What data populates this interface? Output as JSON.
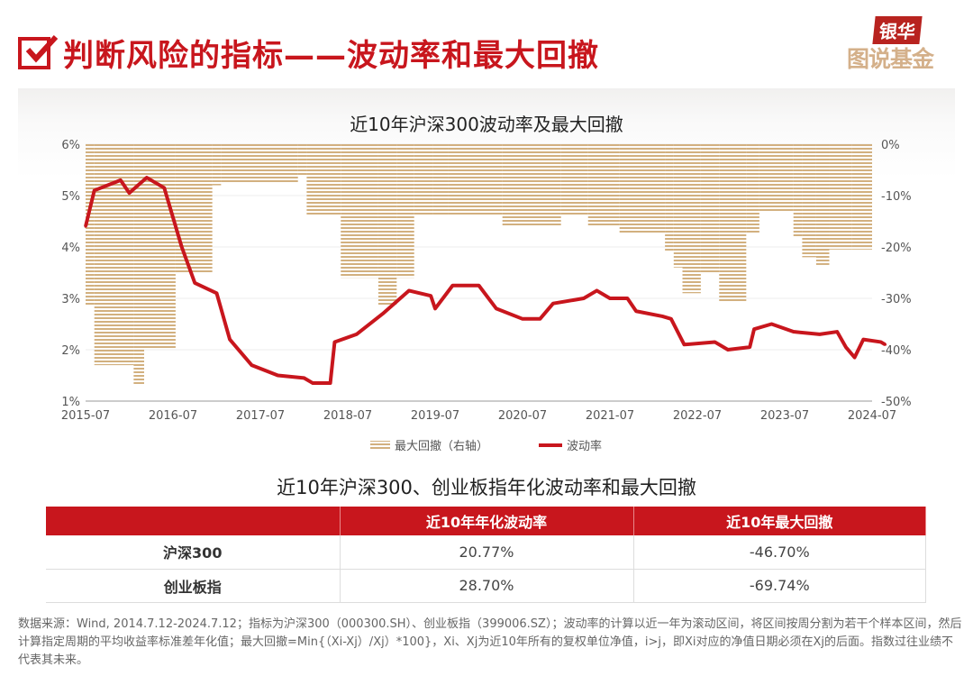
{
  "header": {
    "title": "判断风险的指标——波动率和最大回撤",
    "logo_top": "银华",
    "logo_bottom": "图说基金"
  },
  "chart_data": {
    "type": "line",
    "title": "近10年沪深300波动率及最大回撤",
    "x_ticks": [
      "2015-07",
      "2016-07",
      "2017-07",
      "2018-07",
      "2019-07",
      "2020-07",
      "2021-07",
      "2022-07",
      "2023-07",
      "2024-07"
    ],
    "x_range": [
      2015.5,
      2024.5
    ],
    "y_left": {
      "ticks": [
        "1%",
        "2%",
        "3%",
        "4%",
        "5%",
        "6%"
      ],
      "range": [
        1,
        6
      ]
    },
    "y_right": {
      "ticks": [
        "-50%",
        "-40%",
        "-30%",
        "-20%",
        "-10%",
        "0%"
      ],
      "range": [
        -50,
        0
      ]
    },
    "legend": [
      "最大回撤（右轴）",
      "波动率"
    ],
    "colors": {
      "drawdown": "#d2b07f",
      "volatility": "#c8161d"
    },
    "drawdown": {
      "name": "最大回撤（右轴）",
      "axis": "right",
      "x": [
        2015.5,
        2015.6,
        2016.05,
        2016.17,
        2016.53,
        2016.95,
        2017.05,
        2017.93,
        2018.03,
        2018.42,
        2018.85,
        2019.06,
        2019.26,
        2019.47,
        2019.65,
        2020.27,
        2020.94,
        2021.25,
        2021.61,
        2022.13,
        2022.23,
        2022.33,
        2022.54,
        2022.75,
        2023.06,
        2023.21,
        2023.6,
        2023.7,
        2023.86,
        2024.01,
        2024.27,
        2024.5
      ],
      "y": [
        -31.5,
        -43,
        -46.7,
        -40,
        -25,
        -8,
        -7.5,
        -6,
        -14,
        -26,
        -31.5,
        -26,
        -14,
        -14,
        -14,
        -16,
        -14,
        -16,
        -17.5,
        -21,
        -24,
        -29,
        -25,
        -30.7,
        -17.5,
        -13,
        -18,
        -22,
        -23.5,
        -20.5,
        -20.5,
        -20.5
      ]
    },
    "volatility": {
      "name": "波动率",
      "axis": "left",
      "x": [
        2015.5,
        2015.6,
        2015.9,
        2016.0,
        2016.2,
        2016.4,
        2016.6,
        2016.75,
        2017.0,
        2017.15,
        2017.4,
        2017.7,
        2018.0,
        2018.1,
        2018.3,
        2018.35,
        2018.6,
        2018.9,
        2019.2,
        2019.45,
        2019.5,
        2019.7,
        2020.0,
        2020.2,
        2020.5,
        2020.7,
        2020.85,
        2021.2,
        2021.35,
        2021.5,
        2021.7,
        2021.8,
        2022.1,
        2022.2,
        2022.35,
        2022.7,
        2022.85,
        2023.1,
        2023.15,
        2023.35,
        2023.6,
        2023.9,
        2024.1,
        2024.2,
        2024.3,
        2024.4,
        2024.6,
        2024.65
      ],
      "y": [
        4.4,
        5.1,
        5.3,
        5.05,
        5.35,
        5.15,
        4.0,
        3.3,
        3.1,
        2.2,
        1.7,
        1.5,
        1.45,
        1.35,
        1.35,
        2.15,
        2.3,
        2.7,
        3.15,
        3.05,
        2.8,
        3.25,
        3.25,
        2.8,
        2.6,
        2.6,
        2.9,
        3.0,
        3.15,
        3.0,
        3.0,
        2.75,
        2.65,
        2.6,
        2.1,
        2.15,
        2.0,
        2.05,
        2.4,
        2.5,
        2.35,
        2.3,
        2.35,
        2.05,
        1.85,
        2.2,
        2.15,
        2.1
      ]
    }
  },
  "table": {
    "title": "近10年沪深300、创业板指年化波动率和最大回撤",
    "headers": [
      "",
      "近10年年化波动率",
      "近10年最大回撤"
    ],
    "rows": [
      [
        "沪深300",
        "20.77%",
        "-46.70%"
      ],
      [
        "创业板指",
        "28.70%",
        "-69.74%"
      ]
    ]
  },
  "note": "数据来源：Wind, 2014.7.12-2024.7.12；指标为沪深300（000300.SH）、创业板指（399006.SZ）；波动率的计算以近一年为滚动区间，将区间按周分割为若干个样本区间，然后计算指定周期的平均收益率标准差年化值；最大回撤=Min{（Xi-Xj）/Xj）*100}，Xi、Xj为近10年所有的复权单位净值，i>j，即Xi对应的净值日期必须在Xj的后面。指数过往业绩不代表其未来。"
}
